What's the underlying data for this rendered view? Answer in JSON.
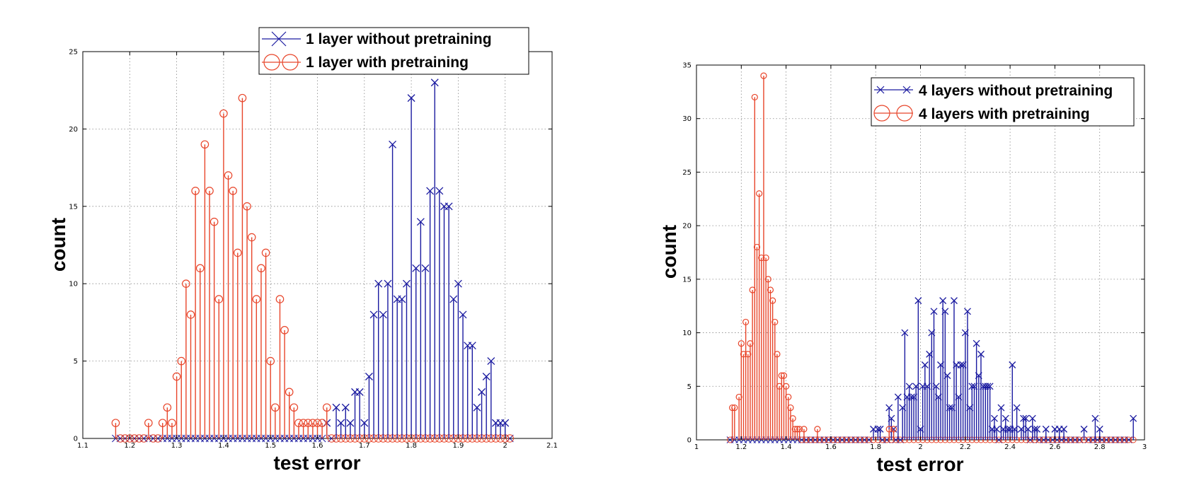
{
  "chart_data": [
    {
      "type": "stem",
      "xlabel": "test error",
      "ylabel": "count",
      "xlim": [
        1.1,
        2.1
      ],
      "ylim": [
        0,
        25
      ],
      "xticks": [
        "1.1",
        "1.2",
        "1.3",
        "1.4",
        "1.5",
        "1.6",
        "1.7",
        "1.8",
        "1.9",
        "2",
        "2.1"
      ],
      "yticks": [
        "0",
        "5",
        "10",
        "15",
        "20",
        "25"
      ],
      "grid": true,
      "legend_position": "top-right",
      "series": [
        {
          "name": "1 layer without pretraining",
          "color": "#1a1aa0",
          "marker": "x",
          "x": [
            1.62,
            1.64,
            1.65,
            1.66,
            1.67,
            1.68,
            1.69,
            1.7,
            1.71,
            1.72,
            1.73,
            1.74,
            1.75,
            1.76,
            1.77,
            1.78,
            1.79,
            1.8,
            1.81,
            1.82,
            1.83,
            1.84,
            1.85,
            1.86,
            1.87,
            1.88,
            1.89,
            1.9,
            1.91,
            1.92,
            1.93,
            1.94,
            1.95,
            1.96,
            1.97,
            1.98,
            1.99,
            2.0
          ],
          "y": [
            1,
            2,
            1,
            2,
            1,
            3,
            3,
            1,
            4,
            8,
            10,
            8,
            10,
            19,
            9,
            9,
            10,
            22,
            11,
            14,
            11,
            16,
            23,
            16,
            15,
            15,
            9,
            10,
            8,
            6,
            6,
            2,
            3,
            4,
            5,
            1,
            1,
            1
          ]
        },
        {
          "name": "1 layer with pretraining",
          "color": "#e8452a",
          "marker": "o",
          "x": [
            1.17,
            1.24,
            1.27,
            1.28,
            1.29,
            1.3,
            1.31,
            1.32,
            1.33,
            1.34,
            1.35,
            1.36,
            1.37,
            1.38,
            1.39,
            1.4,
            1.41,
            1.42,
            1.43,
            1.44,
            1.45,
            1.46,
            1.47,
            1.48,
            1.49,
            1.5,
            1.51,
            1.52,
            1.53,
            1.54,
            1.55,
            1.56,
            1.57,
            1.58,
            1.59,
            1.6,
            1.61,
            1.62
          ],
          "y": [
            1,
            1,
            1,
            2,
            1,
            4,
            5,
            10,
            8,
            16,
            11,
            19,
            16,
            14,
            9,
            21,
            17,
            16,
            12,
            22,
            15,
            13,
            9,
            11,
            12,
            5,
            2,
            9,
            7,
            3,
            2,
            1,
            1,
            1,
            1,
            1,
            1,
            2
          ]
        }
      ]
    },
    {
      "type": "stem",
      "xlabel": "test error",
      "ylabel": "count",
      "xlim": [
        1,
        3
      ],
      "ylim": [
        0,
        35
      ],
      "xticks": [
        "1",
        "1.2",
        "1.4",
        "1.6",
        "1.8",
        "2",
        "2.2",
        "2.4",
        "2.6",
        "2.8",
        "3"
      ],
      "yticks": [
        "0",
        "5",
        "10",
        "15",
        "20",
        "25",
        "30",
        "35"
      ],
      "grid": true,
      "legend_position": "top-right",
      "series": [
        {
          "name": "4 layers without pretraining",
          "color": "#1a1aa0",
          "marker": "x",
          "x": [
            1.79,
            1.81,
            1.82,
            1.86,
            1.87,
            1.88,
            1.9,
            1.92,
            1.93,
            1.94,
            1.95,
            1.96,
            1.97,
            1.98,
            1.99,
            2.0,
            2.01,
            2.02,
            2.03,
            2.04,
            2.05,
            2.06,
            2.07,
            2.08,
            2.09,
            2.1,
            2.11,
            2.12,
            2.13,
            2.14,
            2.15,
            2.16,
            2.17,
            2.18,
            2.19,
            2.2,
            2.21,
            2.22,
            2.23,
            2.24,
            2.25,
            2.26,
            2.27,
            2.28,
            2.29,
            2.3,
            2.31,
            2.32,
            2.33,
            2.34,
            2.36,
            2.37,
            2.38,
            2.39,
            2.4,
            2.41,
            2.42,
            2.43,
            2.45,
            2.46,
            2.47,
            2.48,
            2.5,
            2.51,
            2.52,
            2.56,
            2.6,
            2.62,
            2.64,
            2.73,
            2.78,
            2.8,
            2.95
          ],
          "y": [
            1,
            1,
            1,
            3,
            2,
            1,
            4,
            3,
            10,
            4,
            5,
            4,
            4,
            5,
            13,
            1,
            5,
            7,
            5,
            8,
            10,
            12,
            5,
            4,
            7,
            13,
            12,
            6,
            3,
            3,
            13,
            7,
            4,
            7,
            7,
            10,
            12,
            3,
            5,
            5,
            9,
            6,
            8,
            5,
            5,
            5,
            5,
            1,
            2,
            1,
            3,
            1,
            2,
            1,
            1,
            7,
            1,
            3,
            1,
            2,
            2,
            1,
            2,
            1,
            1,
            1,
            1,
            1,
            1,
            1,
            2,
            1,
            2
          ]
        },
        {
          "name": "4 layers with pretraining",
          "color": "#e8452a",
          "marker": "o",
          "x": [
            1.16,
            1.17,
            1.19,
            1.2,
            1.21,
            1.22,
            1.23,
            1.24,
            1.25,
            1.26,
            1.27,
            1.28,
            1.29,
            1.3,
            1.31,
            1.32,
            1.33,
            1.34,
            1.35,
            1.36,
            1.37,
            1.38,
            1.39,
            1.4,
            1.41,
            1.42,
            1.43,
            1.44,
            1.45,
            1.46,
            1.48,
            1.54,
            1.86,
            1.88
          ],
          "y": [
            3,
            3,
            4,
            9,
            8,
            11,
            8,
            9,
            14,
            32,
            18,
            23,
            17,
            34,
            17,
            15,
            14,
            13,
            11,
            8,
            5,
            6,
            6,
            5,
            4,
            3,
            2,
            1,
            1,
            1,
            1,
            1,
            1,
            1
          ]
        }
      ]
    }
  ]
}
